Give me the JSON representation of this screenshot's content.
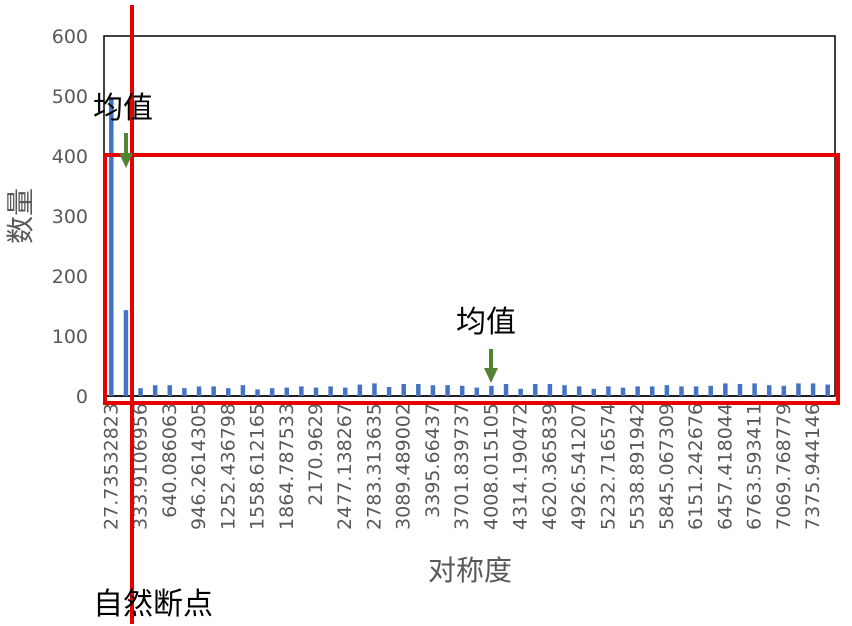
{
  "chart_data": {
    "type": "bar",
    "xlabel": "对称度",
    "ylabel": "数量",
    "ylim": [
      0,
      600
    ],
    "y_ticks": [
      0,
      100,
      200,
      300,
      400,
      500,
      600
    ],
    "x_tick_labels": [
      "27.73532823",
      "333.9106956",
      "640.086063",
      "946.2614305",
      "1252.436798",
      "1558.612165",
      "1864.787533",
      "2170.9629",
      "2477.138267",
      "2783.313635",
      "3089.489002",
      "3395.66437",
      "3701.839737",
      "4008.015105",
      "4314.190472",
      "4620.365839",
      "4926.541207",
      "5232.716574",
      "5538.891942",
      "5845.067309",
      "6151.242676",
      "6457.418044",
      "6763.593411",
      "7069.768779",
      "7375.944146"
    ],
    "values": [
      495,
      143,
      13,
      18,
      18,
      13,
      16,
      16,
      13,
      18,
      11,
      13,
      14,
      16,
      14,
      16,
      14,
      19,
      21,
      15,
      20,
      20,
      18,
      18,
      17,
      14,
      17,
      20,
      12,
      20,
      20,
      18,
      16,
      12,
      16,
      14,
      16,
      16,
      18,
      16,
      16,
      17,
      21,
      20,
      21,
      18,
      17,
      21,
      21,
      19
    ],
    "bar_color": "#4472C4",
    "grid": false,
    "annotations": {
      "mean_label_1": "均值",
      "mean_label_2": "均值",
      "breakpoint_label": "自然断点"
    },
    "arrow_color": "#548235",
    "highlight_color": "#E60000"
  }
}
